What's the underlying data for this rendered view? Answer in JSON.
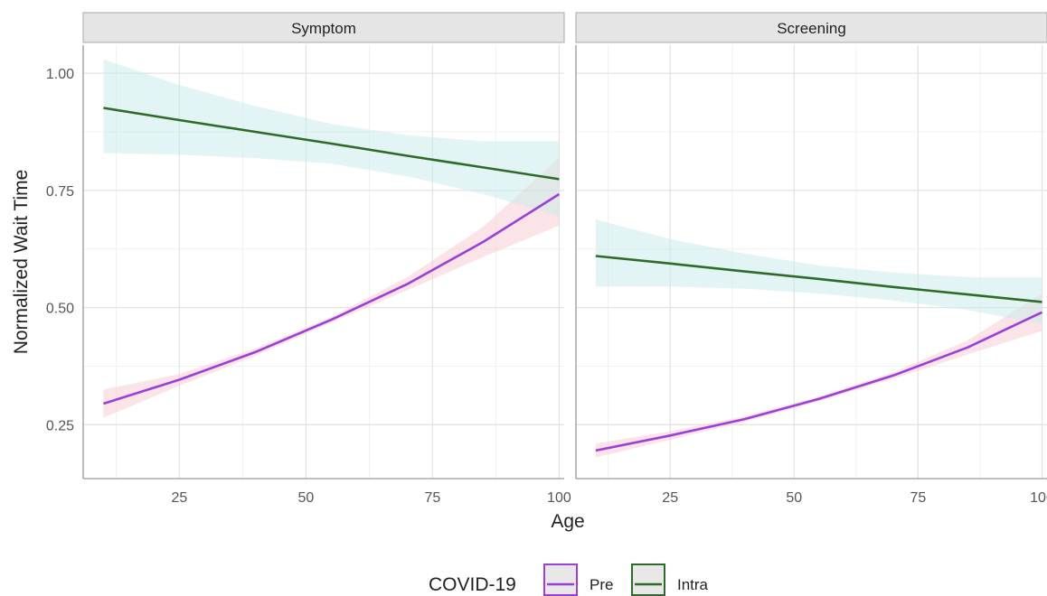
{
  "chart_data": {
    "type": "line",
    "xlabel": "Age",
    "ylabel": "Normalized Wait Time",
    "xlim": [
      6,
      101
    ],
    "ylim": [
      0.135,
      1.06
    ],
    "x_ticks": [
      25,
      50,
      75,
      100
    ],
    "y_ticks": [
      0.25,
      0.5,
      0.75,
      1.0
    ],
    "y_tick_labels": [
      "0.25",
      "0.50",
      "0.75",
      "1.00"
    ],
    "grid": true,
    "legend": {
      "title": "COVID-19",
      "position": "bottom",
      "entries": [
        "Pre",
        "Intra"
      ]
    },
    "panels": [
      {
        "strip": "Symptom",
        "series": [
          {
            "name": "Pre",
            "color": "#9b3fd6",
            "band_color": "#f8c9cf",
            "x": [
              10,
              25,
              40,
              55,
              70,
              85,
              100
            ],
            "y": [
              0.295,
              0.346,
              0.405,
              0.474,
              0.55,
              0.64,
              0.742
            ],
            "lower": [
              0.265,
              0.333,
              0.397,
              0.468,
              0.537,
              0.608,
              0.675
            ],
            "upper": [
              0.325,
              0.358,
              0.413,
              0.48,
              0.565,
              0.672,
              0.82
            ]
          },
          {
            "name": "Intra",
            "color": "#2e6b2a",
            "band_color": "#c6ebea",
            "x": [
              10,
              25,
              40,
              55,
              70,
              85,
              100
            ],
            "y": [
              0.926,
              0.9,
              0.875,
              0.85,
              0.824,
              0.799,
              0.774
            ],
            "lower": [
              0.83,
              0.826,
              0.819,
              0.807,
              0.78,
              0.742,
              0.695
            ],
            "upper": [
              1.03,
              0.975,
              0.93,
              0.892,
              0.868,
              0.855,
              0.855
            ]
          }
        ]
      },
      {
        "strip": "Screening",
        "series": [
          {
            "name": "Pre",
            "color": "#9b3fd6",
            "band_color": "#f8c9cf",
            "x": [
              10,
              25,
              40,
              55,
              70,
              85,
              100
            ],
            "y": [
              0.195,
              0.227,
              0.262,
              0.305,
              0.355,
              0.415,
              0.49
            ],
            "lower": [
              0.18,
              0.218,
              0.256,
              0.3,
              0.348,
              0.4,
              0.45
            ],
            "upper": [
              0.21,
              0.236,
              0.268,
              0.31,
              0.362,
              0.43,
              0.53
            ]
          },
          {
            "name": "Intra",
            "color": "#2e6b2a",
            "band_color": "#c6ebea",
            "x": [
              10,
              25,
              40,
              55,
              70,
              85,
              100
            ],
            "y": [
              0.61,
              0.594,
              0.577,
              0.561,
              0.544,
              0.528,
              0.512
            ],
            "lower": [
              0.545,
              0.545,
              0.54,
              0.53,
              0.515,
              0.495,
              0.465
            ],
            "upper": [
              0.688,
              0.646,
              0.615,
              0.59,
              0.575,
              0.565,
              0.565
            ]
          }
        ]
      }
    ]
  }
}
